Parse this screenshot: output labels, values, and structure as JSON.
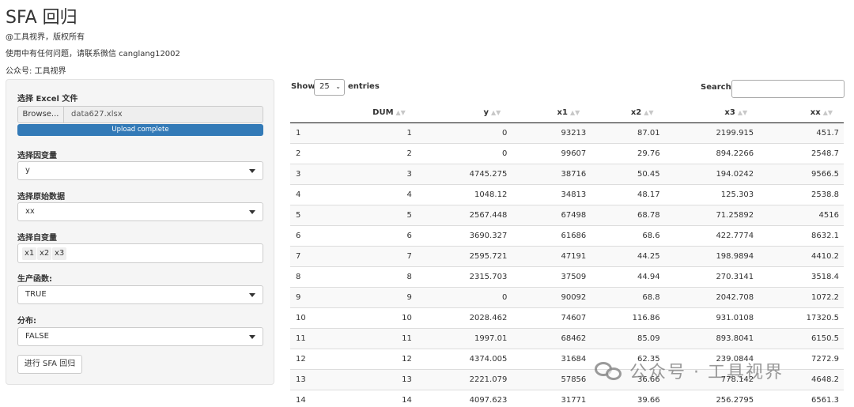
{
  "header": {
    "title": "SFA 回归",
    "copyright": "@工具视界，版权所有",
    "contact": "使用中有任何问题，请联系微信 canglang12002",
    "official": "公众号: 工具视界"
  },
  "sidebar": {
    "file_label": "选择 Excel 文件",
    "browse_label": "Browse...",
    "file_name": "data627.xlsx",
    "upload_status": "Upload complete",
    "upload_progress_percent": 100,
    "dep_var_label": "选择因变量",
    "dep_var_value": "y",
    "raw_data_label": "选择原始数据",
    "raw_data_value": "xx",
    "indep_var_label": "选择自变量",
    "indep_vars": [
      "x1",
      "x2",
      "x3"
    ],
    "production_label": "生产函数:",
    "production_value": "TRUE",
    "distribution_label": "分布:",
    "distribution_value": "FALSE",
    "run_button": "进行 SFA 回归"
  },
  "table_controls": {
    "show_label": "Show",
    "length_value": "25",
    "entries_label": "entries",
    "search_label": "Search:",
    "search_value": ""
  },
  "table": {
    "columns": [
      "",
      "DUM",
      "y",
      "x1",
      "x2",
      "x3",
      "xx"
    ],
    "rows": [
      [
        "1",
        "1",
        "0",
        "93213",
        "87.01",
        "2199.915",
        "451.7"
      ],
      [
        "2",
        "2",
        "0",
        "99607",
        "29.76",
        "894.2266",
        "2548.7"
      ],
      [
        "3",
        "3",
        "4745.275",
        "38716",
        "50.45",
        "194.0242",
        "9566.5"
      ],
      [
        "4",
        "4",
        "1048.12",
        "34813",
        "48.17",
        "125.303",
        "2538.8"
      ],
      [
        "5",
        "5",
        "2567.448",
        "67498",
        "68.78",
        "71.25892",
        "4516"
      ],
      [
        "6",
        "6",
        "3690.327",
        "61686",
        "68.6",
        "422.7774",
        "8632.1"
      ],
      [
        "7",
        "7",
        "2595.721",
        "47191",
        "44.25",
        "198.9894",
        "4410.2"
      ],
      [
        "8",
        "8",
        "2315.703",
        "37509",
        "44.94",
        "270.3141",
        "3518.4"
      ],
      [
        "9",
        "9",
        "0",
        "90092",
        "68.8",
        "2042.708",
        "1072.2"
      ],
      [
        "10",
        "10",
        "2028.462",
        "74607",
        "116.86",
        "931.0108",
        "17320.5"
      ],
      [
        "11",
        "11",
        "1997.01",
        "68462",
        "85.09",
        "893.8041",
        "6150.5"
      ],
      [
        "12",
        "12",
        "4374.005",
        "31684",
        "62.35",
        "239.0844",
        "7272.9"
      ],
      [
        "13",
        "13",
        "2221.079",
        "57856",
        "36.66",
        "778.142",
        "4648.2"
      ],
      [
        "14",
        "14",
        "4097.623",
        "31771",
        "39.66",
        "256.2795",
        "6561.3"
      ]
    ]
  },
  "watermark": {
    "text": "公众号 · 工具视界",
    "icon": "wechat-icon"
  }
}
